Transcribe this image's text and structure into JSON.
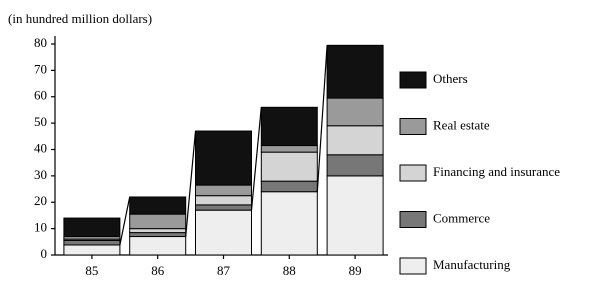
{
  "chart_data": {
    "type": "stacked-bar",
    "y_label": "(in hundred million dollars)",
    "categories": [
      "85",
      "86",
      "87",
      "88",
      "89"
    ],
    "series": [
      {
        "name": "Manufacturing",
        "color": "#eeeeee",
        "values": [
          3.8,
          7,
          17,
          24,
          30
        ]
      },
      {
        "name": "Commerce",
        "color": "#777777",
        "values": [
          1.7,
          1.5,
          2,
          4,
          8
        ]
      },
      {
        "name": "Financing and insurance",
        "color": "#d4d4d4",
        "values": [
          0.5,
          1.5,
          3.5,
          11,
          11
        ]
      },
      {
        "name": "Real estate",
        "color": "#9a9a9a",
        "values": [
          1,
          5.5,
          4,
          2.5,
          10.5
        ]
      },
      {
        "name": "Others",
        "color": "#111111",
        "values": [
          7,
          6.5,
          20.5,
          14.5,
          20
        ]
      }
    ],
    "ylim": [
      0,
      80
    ],
    "yticks": [
      0,
      10,
      20,
      30,
      40,
      50,
      60,
      70,
      80
    ]
  }
}
